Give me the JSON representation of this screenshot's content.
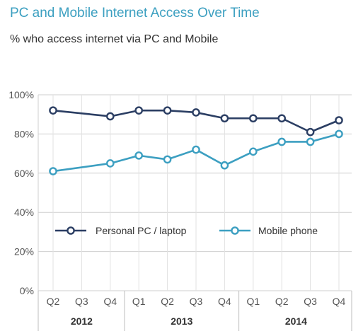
{
  "chart_data": {
    "type": "line",
    "title": "PC and Mobile Internet Access Over Time",
    "subtitle": "% who access internet via PC and Mobile",
    "categories": [
      "Q2",
      "Q3",
      "Q4",
      "Q1",
      "Q2",
      "Q3",
      "Q4",
      "Q1",
      "Q2",
      "Q3",
      "Q4"
    ],
    "years": [
      {
        "label": "2012",
        "start": 0,
        "end": 2
      },
      {
        "label": "2013",
        "start": 3,
        "end": 6
      },
      {
        "label": "2014",
        "start": 7,
        "end": 10
      }
    ],
    "series": [
      {
        "name": "Personal PC / laptop",
        "color": "#2b3e63",
        "values": [
          92,
          null,
          89,
          92,
          92,
          91,
          88,
          88,
          88,
          81,
          87
        ]
      },
      {
        "name": "Mobile phone",
        "color": "#3c9fc1",
        "values": [
          61,
          null,
          65,
          69,
          67,
          72,
          64,
          71,
          76,
          76,
          80
        ]
      }
    ],
    "yticks": [
      "0%",
      "20%",
      "40%",
      "60%",
      "80%",
      "100%"
    ],
    "ylim": [
      0,
      100
    ],
    "legend_position": "center",
    "grid": true
  }
}
